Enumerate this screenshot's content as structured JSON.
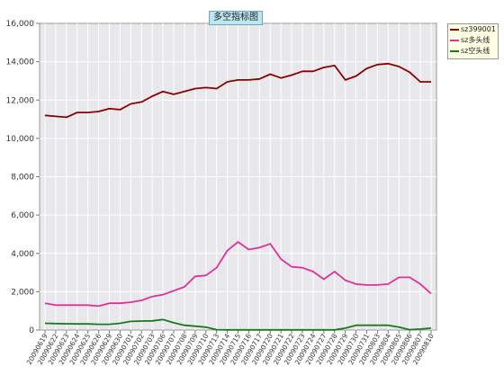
{
  "chart_data": {
    "type": "line",
    "title": "多空指标图",
    "ylim": [
      0,
      16000
    ],
    "yticks": [
      "0",
      "2,000",
      "4,000",
      "6,000",
      "8,000",
      "10,000",
      "12,000",
      "14,000",
      "16,000"
    ],
    "ytick_values": [
      0,
      2000,
      4000,
      6000,
      8000,
      10000,
      12000,
      14000,
      16000
    ],
    "grid": true,
    "legend_position": "top-right",
    "x": [
      "20090619",
      "20090622",
      "20090623",
      "20090624",
      "20090625",
      "20090626",
      "20090629",
      "20090630",
      "20090701",
      "20090702",
      "20090703",
      "20090706",
      "20090707",
      "20090708",
      "20090709",
      "20090710",
      "20090713",
      "20090714",
      "20090715",
      "20090716",
      "20090717",
      "20090720",
      "20090721",
      "20090722",
      "20090723",
      "20090724",
      "20090727",
      "20090728",
      "20090729",
      "20090730",
      "20090731",
      "20090803",
      "20090804",
      "20090805",
      "20090806",
      "20090807",
      "20090810"
    ],
    "series": [
      {
        "name": "sz399001",
        "color": "#8b0000",
        "values": [
          11200,
          11150,
          11100,
          11350,
          11350,
          11400,
          11550,
          11500,
          11800,
          11900,
          12200,
          12450,
          12300,
          12450,
          12600,
          12650,
          12600,
          12950,
          13050,
          13050,
          13100,
          13350,
          13150,
          13300,
          13500,
          13500,
          13700,
          13800,
          13050,
          13250,
          13650,
          13850,
          13900,
          13750,
          13450,
          12950,
          12950
        ]
      },
      {
        "name": "sz多头线",
        "color": "#e0309a",
        "values": [
          1400,
          1300,
          1300,
          1300,
          1300,
          1250,
          1400,
          1400,
          1450,
          1550,
          1750,
          1850,
          2050,
          2250,
          2800,
          2850,
          3250,
          4150,
          4600,
          4200,
          4300,
          4500,
          3700,
          3300,
          3250,
          3050,
          2650,
          3050,
          2600,
          2400,
          2350,
          2350,
          2400,
          2750,
          2750,
          2400,
          1900
        ]
      },
      {
        "name": "sz空头线",
        "color": "#1a7a1a",
        "values": [
          350,
          340,
          330,
          320,
          320,
          300,
          300,
          350,
          450,
          470,
          480,
          550,
          380,
          250,
          200,
          150,
          20,
          10,
          10,
          10,
          10,
          10,
          10,
          10,
          10,
          10,
          10,
          10,
          100,
          250,
          250,
          250,
          250,
          150,
          20,
          50,
          100
        ]
      }
    ]
  }
}
